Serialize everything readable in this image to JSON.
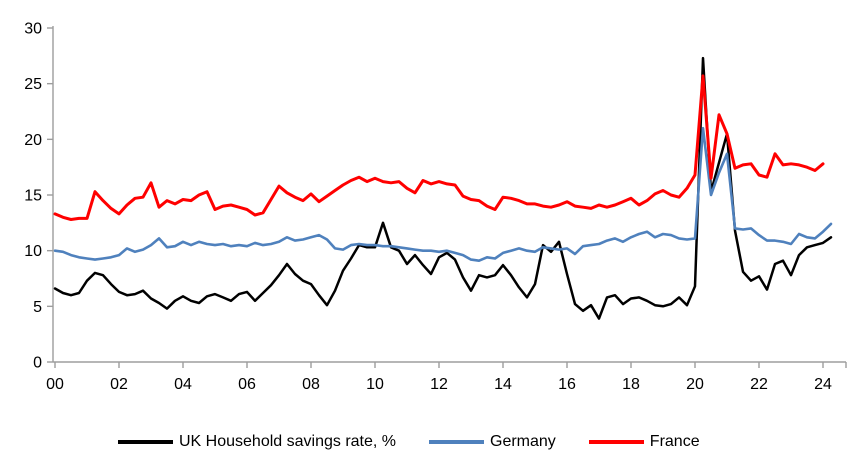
{
  "chart_data": {
    "type": "line",
    "title": "",
    "xlabel": "",
    "ylabel": "",
    "grid": false,
    "legend_position": "bottom",
    "x_axis": {
      "tick_labels": [
        "00",
        "02",
        "04",
        "06",
        "08",
        "10",
        "12",
        "14",
        "16",
        "18",
        "20",
        "22",
        "24"
      ],
      "tick_years": [
        2000,
        2002,
        2004,
        2006,
        2008,
        2010,
        2012,
        2014,
        2016,
        2018,
        2020,
        2022,
        2024
      ],
      "start_year": 2000,
      "points_per_year": 4
    },
    "y_axis": {
      "ticks": [
        0,
        5,
        10,
        15,
        20,
        25,
        30
      ],
      "min": 0,
      "max": 30
    },
    "series": [
      {
        "name": "UK Household savings rate, %",
        "slug": "uk",
        "color": "#000000",
        "start": 2000.0,
        "step": 0.25,
        "values": [
          6.6,
          6.2,
          6.0,
          6.2,
          7.3,
          8.0,
          7.8,
          7.0,
          6.3,
          6.0,
          6.1,
          6.4,
          5.7,
          5.3,
          4.8,
          5.5,
          5.9,
          5.5,
          5.3,
          5.9,
          6.1,
          5.8,
          5.5,
          6.1,
          6.3,
          5.5,
          6.2,
          6.9,
          7.8,
          8.8,
          7.9,
          7.3,
          7.0,
          6.0,
          5.1,
          6.4,
          8.2,
          9.3,
          10.5,
          10.3,
          10.3,
          12.5,
          10.3,
          10.0,
          8.8,
          9.6,
          8.7,
          7.9,
          9.4,
          9.8,
          9.2,
          7.6,
          6.4,
          7.8,
          7.6,
          7.8,
          8.7,
          7.8,
          6.7,
          5.8,
          7.0,
          10.5,
          9.9,
          10.8,
          7.9,
          5.2,
          4.6,
          5.1,
          3.9,
          5.8,
          6.0,
          5.2,
          5.7,
          5.8,
          5.5,
          5.1,
          5.0,
          5.2,
          5.8,
          5.1,
          6.8,
          27.3,
          15.3,
          17.9,
          20.5,
          11.8,
          8.1,
          7.3,
          7.7,
          6.5,
          8.8,
          9.1,
          7.8,
          9.6,
          10.3,
          10.5,
          10.7,
          11.2
        ]
      },
      {
        "name": "Germany",
        "slug": "germany",
        "color": "#4F81BD",
        "start": 2000.0,
        "step": 0.25,
        "values": [
          10.0,
          9.9,
          9.6,
          9.4,
          9.3,
          9.2,
          9.3,
          9.4,
          9.6,
          10.2,
          9.9,
          10.1,
          10.5,
          11.1,
          10.3,
          10.4,
          10.8,
          10.5,
          10.8,
          10.6,
          10.5,
          10.6,
          10.4,
          10.5,
          10.4,
          10.7,
          10.5,
          10.6,
          10.8,
          11.2,
          10.9,
          11.0,
          11.2,
          11.4,
          11.0,
          10.2,
          10.1,
          10.5,
          10.6,
          10.5,
          10.5,
          10.4,
          10.4,
          10.3,
          10.2,
          10.1,
          10.0,
          10.0,
          9.9,
          10.0,
          9.8,
          9.6,
          9.2,
          9.1,
          9.4,
          9.3,
          9.8,
          10.0,
          10.2,
          10.0,
          9.9,
          10.3,
          10.2,
          10.1,
          10.2,
          9.7,
          10.4,
          10.5,
          10.6,
          10.9,
          11.1,
          10.8,
          11.2,
          11.5,
          11.7,
          11.2,
          11.5,
          11.4,
          11.1,
          11.0,
          11.1,
          21.0,
          15.0,
          17.0,
          18.7,
          12.0,
          11.9,
          12.0,
          11.4,
          10.9,
          10.9,
          10.8,
          10.6,
          11.5,
          11.2,
          11.1,
          11.7,
          12.4
        ]
      },
      {
        "name": "France",
        "slug": "france",
        "color": "#FF0000",
        "start": 2000.0,
        "step": 0.25,
        "values": [
          13.3,
          13.0,
          12.8,
          12.9,
          12.9,
          15.3,
          14.5,
          13.8,
          13.3,
          14.1,
          14.7,
          14.8,
          16.1,
          13.9,
          14.5,
          14.2,
          14.6,
          14.5,
          15.0,
          15.3,
          13.7,
          14.0,
          14.1,
          13.9,
          13.7,
          13.2,
          13.4,
          14.6,
          15.8,
          15.2,
          14.8,
          14.5,
          15.1,
          14.4,
          14.9,
          15.4,
          15.9,
          16.3,
          16.6,
          16.2,
          16.5,
          16.2,
          16.1,
          16.2,
          15.6,
          15.2,
          16.3,
          16.0,
          16.2,
          16.0,
          15.9,
          14.9,
          14.6,
          14.5,
          14.0,
          13.7,
          14.8,
          14.7,
          14.5,
          14.2,
          14.2,
          14.0,
          13.9,
          14.1,
          14.4,
          14.0,
          13.9,
          13.8,
          14.1,
          13.9,
          14.1,
          14.4,
          14.7,
          14.1,
          14.5,
          15.1,
          15.4,
          15.0,
          14.8,
          15.6,
          16.8,
          25.7,
          16.5,
          22.2,
          20.5,
          17.4,
          17.7,
          17.8,
          16.8,
          16.6,
          18.7,
          17.7,
          17.8,
          17.7,
          17.5,
          17.2,
          17.8
        ]
      }
    ]
  },
  "colors": {
    "background": "#FFFFFF",
    "axis": "#9D9D9D",
    "tick_label": "#000000",
    "uk_line": "#000000",
    "germany_line": "#4F81BD",
    "france_line": "#FF0000"
  }
}
